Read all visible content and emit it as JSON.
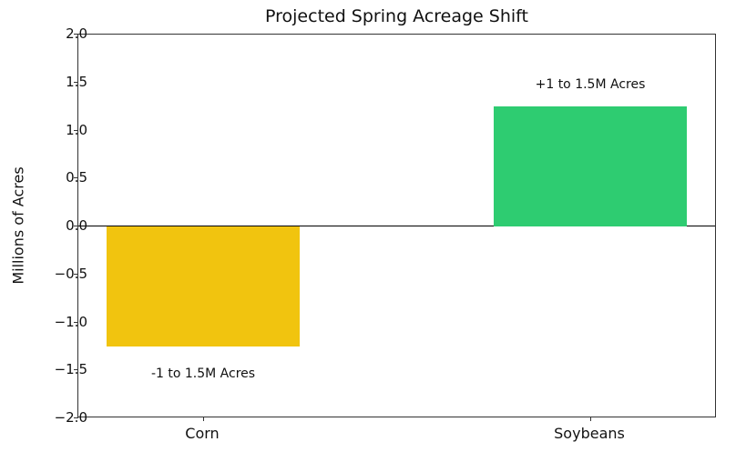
{
  "chart_data": {
    "type": "bar",
    "title": "Projected Spring Acreage Shift",
    "xlabel": "",
    "ylabel": "Millions of Acres",
    "categories": [
      "Corn",
      "Soybeans"
    ],
    "values": [
      -1.25,
      1.25
    ],
    "colors": [
      "#f1c40f",
      "#2ecc71"
    ],
    "annotations": [
      "-1 to 1.5M Acres",
      "+1 to 1.5M Acres"
    ],
    "ylim": [
      -2.0,
      2.0
    ],
    "yticks": [
      "2.0",
      "1.5",
      "1.0",
      "0.5",
      "0.0",
      "−0.5",
      "−1.0",
      "−1.5",
      "−2.0"
    ],
    "grid": false,
    "legend": null
  }
}
